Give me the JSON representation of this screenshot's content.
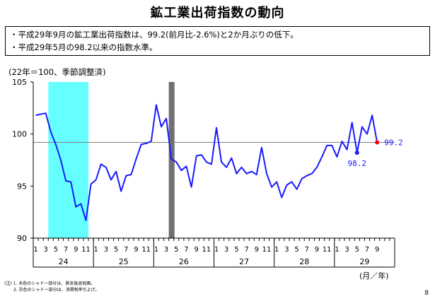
{
  "title": "鉱工業出荷指数の動向",
  "summary": [
    "・平成29年9月の鉱工業出荷指数は、99.2(前月比-2.6%)と2か月ぶりの低下。",
    "・平成29年5月の98.2以来の指数水準。"
  ],
  "unit_note": "(22年＝100、季節調整済)",
  "x_unit": "(月／年)",
  "notes": [
    "(注) 1. 水色のシャドー部分は、景気後退局面。",
    "2. 灰色のシャドー部分は、消費税率引上げ。"
  ],
  "page_number": "8",
  "colors": {
    "line": "#1a1aff",
    "recession_shade": "#66ffff",
    "tax_shade": "#707070",
    "reference_line": "#808080",
    "marker_highlight": "#ff0000",
    "marker_low": "#1a1aff"
  },
  "chart_data": {
    "type": "line",
    "title": "",
    "xlabel": "(月／年)",
    "ylabel": "(22年＝100、季節調整済)",
    "ylim": [
      90,
      105
    ],
    "yticks": [
      90,
      95,
      100,
      105
    ],
    "grid": false,
    "years": [
      "24",
      "25",
      "26",
      "27",
      "28",
      "29"
    ],
    "month_tick_labels": [
      "1",
      "3",
      "5",
      "7",
      "9",
      "11"
    ],
    "last_year_month_tick_labels": [
      "1",
      "3",
      "5",
      "7",
      "9"
    ],
    "start": "2012-01",
    "series": [
      {
        "values": [
          101.8,
          101.9,
          102.0,
          100.2,
          99.0,
          97.5,
          95.5,
          95.4,
          93.0,
          93.3,
          91.7,
          95.2,
          95.6,
          97.1,
          96.8,
          95.6,
          96.4,
          94.5,
          96.0,
          96.1,
          97.6,
          99.0,
          99.1,
          99.3,
          102.8,
          100.7,
          101.5,
          97.6,
          97.3,
          96.5,
          96.9,
          94.9,
          97.9,
          98.0,
          97.3,
          97.1,
          100.6,
          97.3,
          96.8,
          97.7,
          96.2,
          96.8,
          96.2,
          96.4,
          96.1,
          98.7,
          96.2,
          94.9,
          95.4,
          93.9,
          95.1,
          95.4,
          94.7,
          95.7,
          96.0,
          96.2,
          96.8,
          97.8,
          98.9,
          98.9,
          97.8,
          99.3,
          98.5,
          101.1,
          98.2,
          100.7,
          100.0,
          101.8,
          99.2
        ]
      }
    ],
    "recession_shade": {
      "from": "2012-04",
      "to": "2012-11"
    },
    "tax_shade": {
      "from": "2014-04",
      "to": "2014-04"
    },
    "reference_value": 99.2,
    "annotations": [
      {
        "label": "99.2",
        "at": "2017-09",
        "value": 99.2,
        "marker": "red"
      },
      {
        "label": "98.2",
        "at": "2017-05",
        "value": 98.2,
        "marker": "blue"
      }
    ]
  }
}
